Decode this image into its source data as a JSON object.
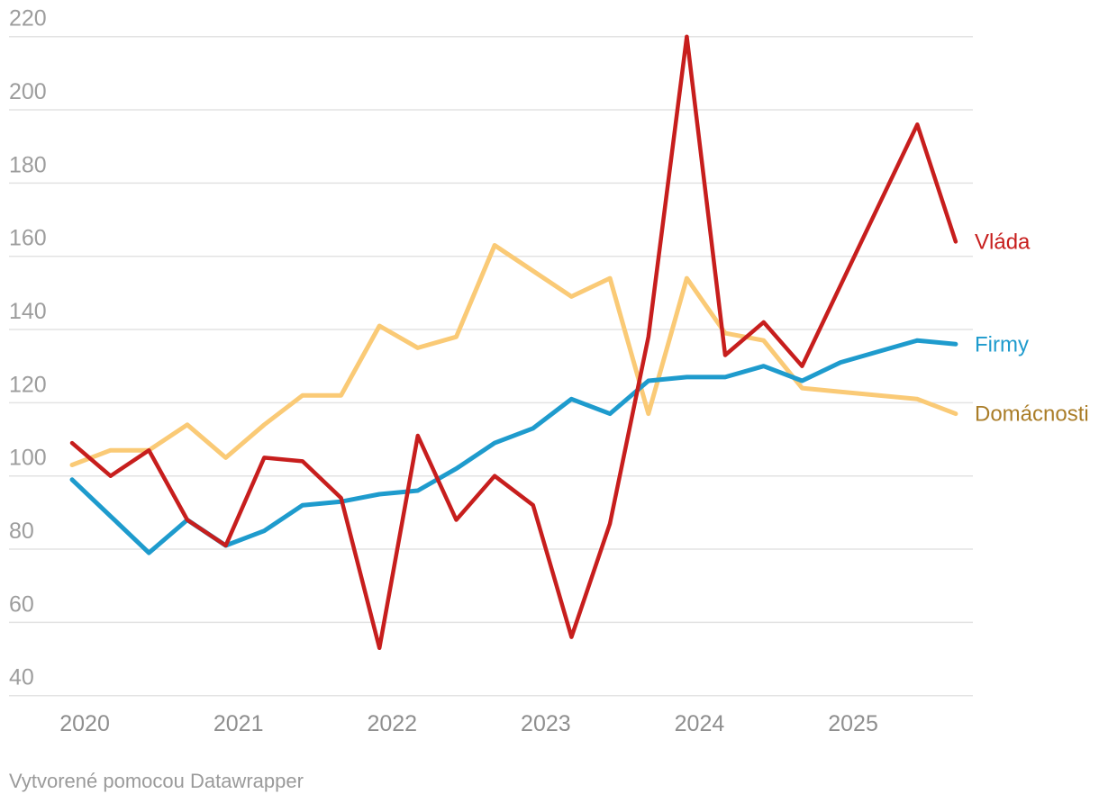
{
  "chart_data": {
    "type": "line",
    "title": "",
    "x_unit": "quarter",
    "x": [
      "2020Q1",
      "2020Q2",
      "2020Q3",
      "2020Q4",
      "2021Q1",
      "2021Q2",
      "2021Q3",
      "2021Q4",
      "2022Q1",
      "2022Q2",
      "2022Q3",
      "2022Q4",
      "2023Q1",
      "2023Q2",
      "2023Q3",
      "2023Q4",
      "2024Q1",
      "2024Q2",
      "2024Q3",
      "2024Q4",
      "2025Q1",
      "2025Q2",
      "2025Q3",
      "2025Q4"
    ],
    "year_labels": [
      "2020",
      "2021",
      "2022",
      "2023",
      "2024",
      "2025"
    ],
    "y_ticks": [
      40,
      60,
      80,
      100,
      120,
      140,
      160,
      180,
      200,
      220
    ],
    "ylim": [
      40,
      220
    ],
    "grid": true,
    "legend_position": "right-of-line-ends",
    "series": [
      {
        "name": "Domácnosti",
        "color": "#faca76",
        "label_color": "#aa7d28",
        "values": [
          103,
          107,
          107,
          114,
          105,
          114,
          122,
          122,
          141,
          135,
          138,
          163,
          156,
          149,
          154,
          117,
          154,
          139,
          137,
          124,
          123,
          122,
          121,
          117
        ]
      },
      {
        "name": "Firmy",
        "color": "#1e9bcd",
        "label_color": "#1e9bcd",
        "values": [
          99,
          89,
          79,
          88,
          81,
          85,
          92,
          93,
          95,
          96,
          102,
          109,
          113,
          121,
          117,
          126,
          127,
          127,
          130,
          126,
          131,
          134,
          137,
          136
        ]
      },
      {
        "name": "Vláda",
        "color": "#c71e1d",
        "label_color": "#c71e1d",
        "values": [
          109,
          100,
          107,
          88,
          81,
          105,
          104,
          94,
          53,
          111,
          88,
          100,
          92,
          56,
          87,
          138,
          220,
          133,
          142,
          130,
          152,
          174,
          196,
          164
        ]
      }
    ],
    "colors": {
      "gridline": "#e3e3e3",
      "y_tick_label": "#9d9d9d",
      "x_tick_label": "#8f8f8f",
      "attribution": "#9a9a9a"
    },
    "attribution": "Vytvorené pomocou Datawrapper"
  }
}
